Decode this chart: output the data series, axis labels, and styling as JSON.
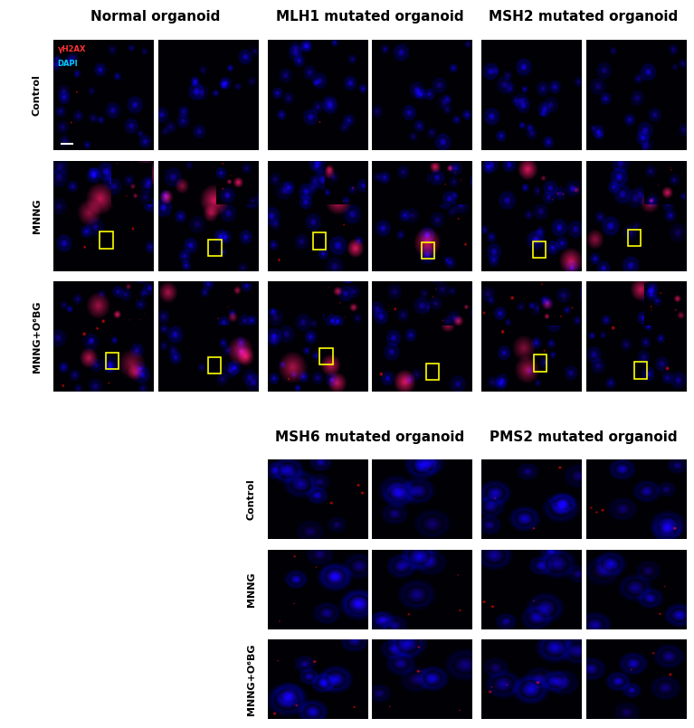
{
  "top_col_titles": [
    "Normal organoid",
    "MLH1 mutated organoid",
    "MSH2 mutated organoid"
  ],
  "bottom_col_titles": [
    "MSH6 mutated organoid",
    "PMS2 mutated organoid"
  ],
  "row_labels_top": [
    "Control",
    "MNNG",
    "MNNG+O⁶BG"
  ],
  "row_labels_bottom": [
    "Control",
    "MNNG",
    "MNNG+O⁶BG"
  ],
  "legend_red": "γH2AX",
  "legend_blue": "DAPI",
  "legend_red_color": "#ff3333",
  "legend_blue_color": "#00ccff",
  "yellow": "#ffff00",
  "white": "#ffffff",
  "fig_bg": "#ffffff",
  "title_fontsize": 11,
  "row_label_fontsize": 8,
  "legend_fontsize": 6
}
